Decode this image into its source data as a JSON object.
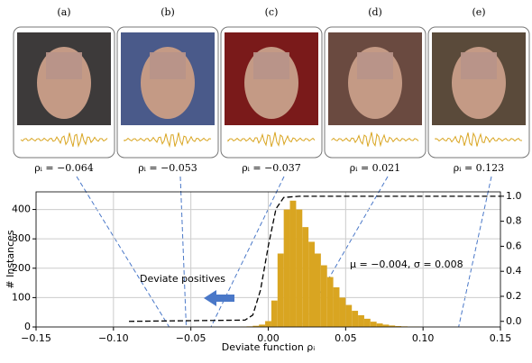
{
  "panels": [
    {
      "label": "(a)",
      "rho": -0.064,
      "rho_label": "ρᵢ = −0.064"
    },
    {
      "label": "(b)",
      "rho": -0.053,
      "rho_label": "ρᵢ = −0.053"
    },
    {
      "label": "(c)",
      "rho": -0.037,
      "rho_label": "ρᵢ = −0.037"
    },
    {
      "label": "(d)",
      "rho": 0.021,
      "rho_label": "ρᵢ = 0.021"
    },
    {
      "label": "(e)",
      "rho": 0.123,
      "rho_label": "ρᵢ = 0.123"
    }
  ],
  "chart_data": {
    "type": "histogram",
    "x_label": "Deviate function ρᵢ",
    "y_label": "# Instances",
    "annotations": [
      "Deviate positives",
      "μ = −0.004,  σ = 0.008"
    ],
    "bins": [
      -0.018,
      -0.014,
      -0.01,
      -0.006,
      -0.002,
      0.002,
      0.006,
      0.01,
      0.014,
      0.018,
      0.022,
      0.026,
      0.03,
      0.034,
      0.038,
      0.042,
      0.046,
      0.05,
      0.054,
      0.058,
      0.062,
      0.066,
      0.07,
      0.074,
      0.078,
      0.082,
      0.086,
      0.09,
      0.094,
      0.098,
      0.102
    ],
    "counts": [
      1,
      2,
      4,
      8,
      20,
      90,
      250,
      400,
      430,
      400,
      340,
      290,
      250,
      210,
      170,
      135,
      100,
      75,
      55,
      40,
      28,
      18,
      12,
      8,
      5,
      3,
      2,
      1,
      1,
      0
    ],
    "color": "#d9a521",
    "cdf": {
      "x": [
        -0.09,
        -0.015,
        -0.01,
        -0.005,
        0,
        0.005,
        0.01,
        0.02,
        0.15
      ],
      "values": [
        0,
        0.01,
        0.05,
        0.25,
        0.6,
        0.9,
        0.99,
        1,
        1
      ],
      "axis": "y2",
      "color": "#000000"
    },
    "xlim": [
      -0.15,
      0.15
    ],
    "xticks": [
      {
        "value": -0.15,
        "label": "−0.15"
      },
      {
        "value": -0.1,
        "label": "−0.10"
      },
      {
        "value": -0.05,
        "label": "−0.05"
      },
      {
        "value": 0,
        "label": "0.00"
      },
      0.05,
      {
        "value": 0.1,
        "label": "0.10"
      },
      0.15
    ],
    "ylim": [
      0,
      460
    ],
    "yticks": [
      0,
      100,
      200,
      300,
      400
    ],
    "y2lim": [
      -0.045,
      1.035
    ],
    "y2ticks": [
      {
        "value": 0,
        "label": "0.0"
      },
      0.2,
      0.4,
      0.6,
      0.8,
      {
        "value": 1,
        "label": "1.0"
      }
    ],
    "grid": true
  }
}
